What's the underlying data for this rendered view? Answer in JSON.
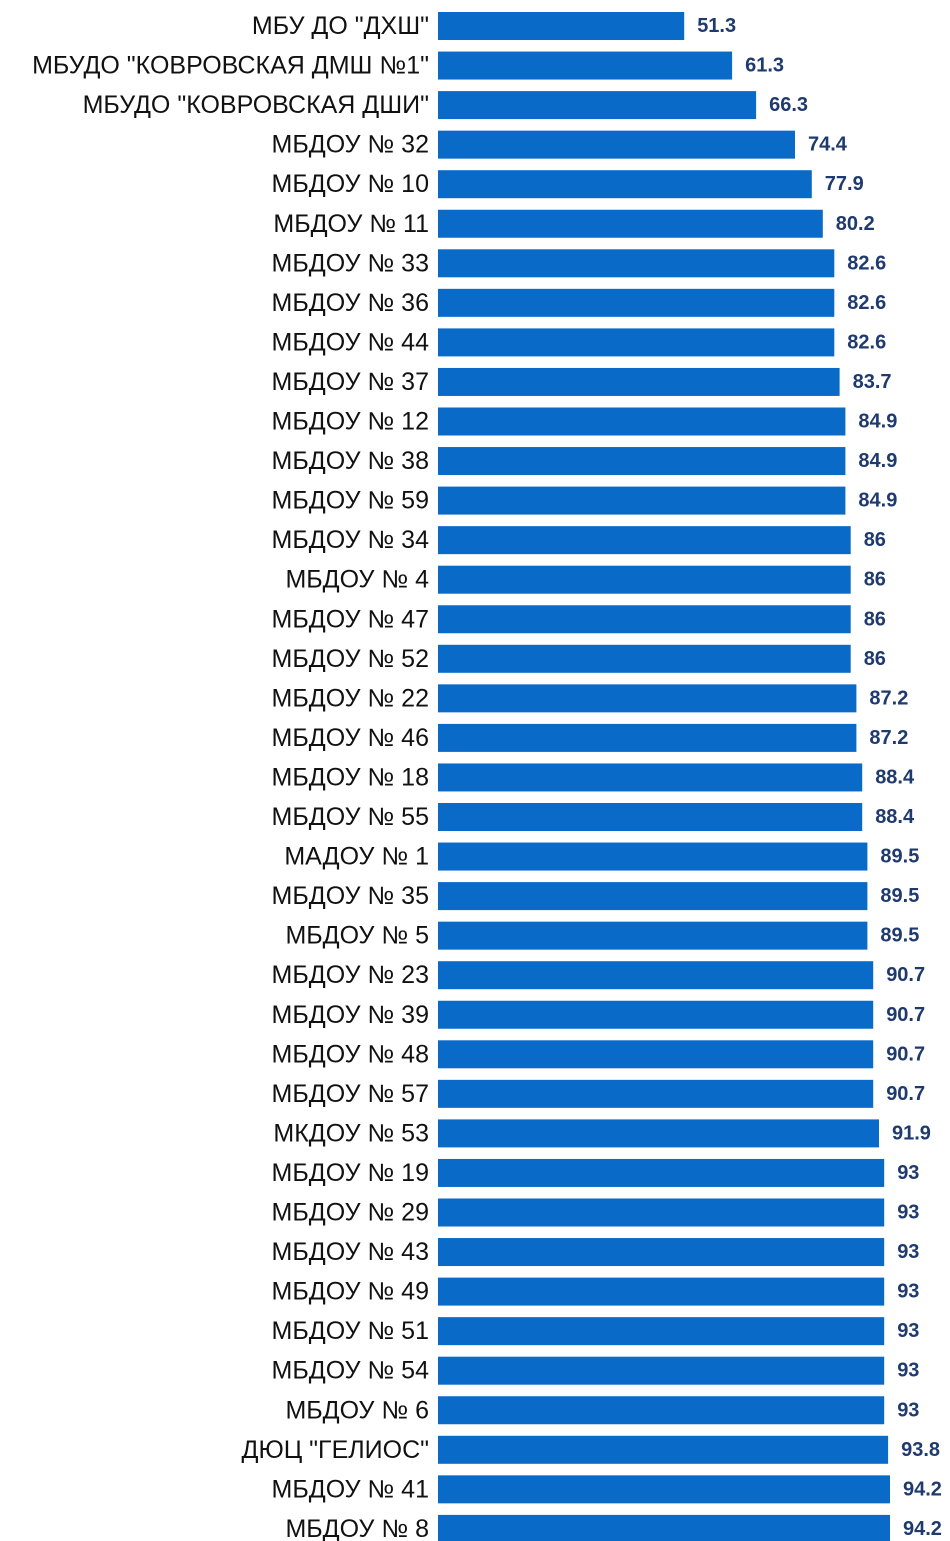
{
  "chart_data": {
    "type": "bar",
    "orientation": "horizontal",
    "categories": [
      "МБУ ДО \"ДХШ\"",
      "МБУДО \"КОВРОВСКАЯ ДМШ №1\"",
      "МБУДО \"КОВРОВСКАЯ ДШИ\"",
      "МБДОУ № 32",
      "МБДОУ № 10",
      "МБДОУ № 11",
      "МБДОУ № 33",
      "МБДОУ № 36",
      "МБДОУ № 44",
      "МБДОУ № 37",
      "МБДОУ № 12",
      "МБДОУ № 38",
      "МБДОУ № 59",
      "МБДОУ № 34",
      "МБДОУ № 4",
      "МБДОУ № 47",
      "МБДОУ № 52",
      "МБДОУ № 22",
      "МБДОУ № 46",
      "МБДОУ № 18",
      "МБДОУ № 55",
      "МАДОУ № 1",
      "МБДОУ № 35",
      "МБДОУ № 5",
      "МБДОУ № 23",
      "МБДОУ № 39",
      "МБДОУ № 48",
      "МБДОУ № 57",
      "МКДОУ № 53",
      "МБДОУ № 19",
      "МБДОУ № 29",
      "МБДОУ № 43",
      "МБДОУ № 49",
      "МБДОУ № 51",
      "МБДОУ № 54",
      "МБДОУ № 6",
      "ДЮЦ \"ГЕЛИОС\"",
      "МБДОУ № 41",
      "МБДОУ № 8"
    ],
    "values": [
      51.3,
      61.3,
      66.3,
      74.4,
      77.9,
      80.2,
      82.6,
      82.6,
      82.6,
      83.7,
      84.9,
      84.9,
      84.9,
      86,
      86,
      86,
      86,
      87.2,
      87.2,
      88.4,
      88.4,
      89.5,
      89.5,
      89.5,
      90.7,
      90.7,
      90.7,
      90.7,
      91.9,
      93,
      93,
      93,
      93,
      93,
      93,
      93,
      93.8,
      94.2,
      94.2
    ],
    "value_labels": [
      "51.3",
      "61.3",
      "66.3",
      "74.4",
      "77.9",
      "80.2",
      "82.6",
      "82.6",
      "82.6",
      "83.7",
      "84.9",
      "84.9",
      "84.9",
      "86",
      "86",
      "86",
      "86",
      "87.2",
      "87.2",
      "88.4",
      "88.4",
      "89.5",
      "89.5",
      "89.5",
      "90.7",
      "90.7",
      "90.7",
      "90.7",
      "91.9",
      "93",
      "93",
      "93",
      "93",
      "93",
      "93",
      "93",
      "93.8",
      "94.2",
      "94.2"
    ],
    "title": "",
    "xlabel": "",
    "ylabel": "",
    "xlim": [
      0,
      94.2
    ],
    "grid": false,
    "legend": "none",
    "colors": {
      "bar": "#0a6ac8",
      "value_label": "#1f3a6e",
      "category_label": "#111111"
    }
  }
}
